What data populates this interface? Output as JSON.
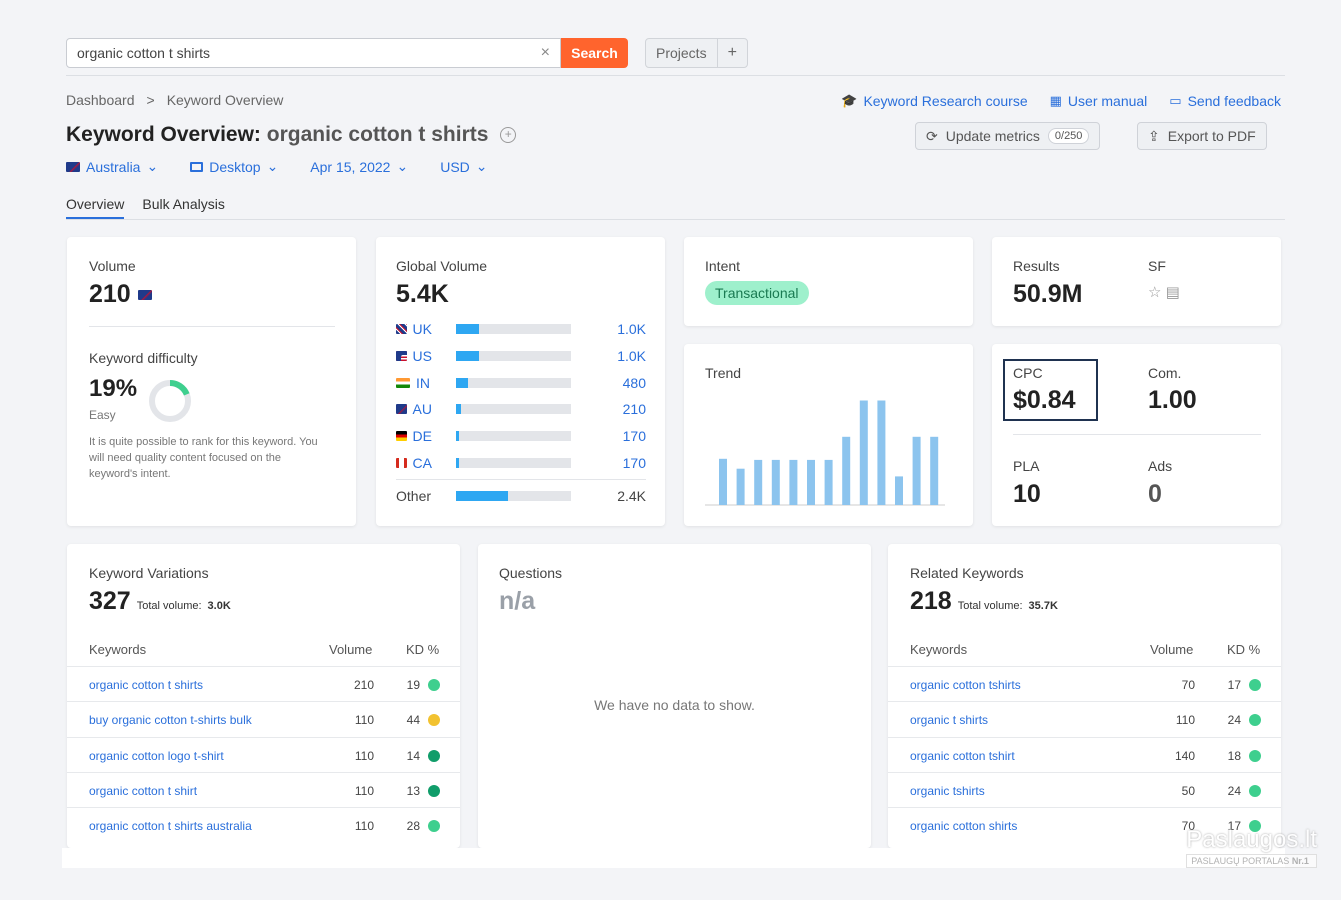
{
  "search": {
    "value": "organic cotton t shirts",
    "button": "Search",
    "clear": "×"
  },
  "projects": {
    "label": "Projects",
    "add": "+"
  },
  "breadcrumb": {
    "home": "Dashboard",
    "sep": ">",
    "current": "Keyword Overview"
  },
  "toplinks": {
    "course": "Keyword Research course",
    "manual": "User manual",
    "feedback": "Send feedback"
  },
  "header": {
    "title": "Keyword Overview:",
    "query": "organic cotton t shirts",
    "update": "Update metrics",
    "update_count": "0/250",
    "export": "Export to PDF"
  },
  "filters": {
    "country": "Australia",
    "device": "Desktop",
    "date": "Apr 15, 2022",
    "currency": "USD"
  },
  "tabs": [
    "Overview",
    "Bulk Analysis"
  ],
  "volume": {
    "label": "Volume",
    "value": "210",
    "kd_label": "Keyword difficulty",
    "kd_value": "19%",
    "kd_level": "Easy",
    "kd_fraction": 0.19,
    "kd_text": "It is quite possible to rank for this keyword. You will need quality content focused on the keyword's intent."
  },
  "global_volume": {
    "label": "Global Volume",
    "value": "5.4K",
    "rows": [
      {
        "code": "UK",
        "flag": "fl-uk",
        "value": "1.0K",
        "fill": 0.2
      },
      {
        "code": "US",
        "flag": "fl-us",
        "value": "1.0K",
        "fill": 0.2
      },
      {
        "code": "IN",
        "flag": "fl-in",
        "value": "480",
        "fill": 0.1
      },
      {
        "code": "AU",
        "flag": "fl-au",
        "value": "210",
        "fill": 0.04
      },
      {
        "code": "DE",
        "flag": "fl-de",
        "value": "170",
        "fill": 0.03
      },
      {
        "code": "CA",
        "flag": "fl-ca",
        "value": "170",
        "fill": 0.03
      }
    ],
    "other_label": "Other",
    "other_value": "2.4K",
    "other_fill": 0.45
  },
  "intent": {
    "label": "Intent",
    "value": "Transactional"
  },
  "results": {
    "label": "Results",
    "value": "50.9M",
    "sf_label": "SF"
  },
  "trend": {
    "label": "Trend",
    "values": [
      0.42,
      0.33,
      0.41,
      0.41,
      0.41,
      0.41,
      0.41,
      0.62,
      0.95,
      0.95,
      0.26,
      0.62,
      0.62
    ]
  },
  "cpc": {
    "cpc_label": "CPC",
    "cpc_value": "$0.84",
    "com_label": "Com.",
    "com_value": "1.00",
    "pla_label": "PLA",
    "pla_value": "10",
    "ads_label": "Ads",
    "ads_value": "0"
  },
  "variations": {
    "label": "Keyword Variations",
    "count": "327",
    "total_label": "Total volume:",
    "total_value": "3.0K",
    "headers": {
      "kw": "Keywords",
      "vol": "Volume",
      "kd": "KD %"
    },
    "rows": [
      {
        "kw": "organic cotton t shirts",
        "vol": "210",
        "kd": "19",
        "color": "#3ecf8e"
      },
      {
        "kw": "buy organic cotton t-shirts bulk",
        "vol": "110",
        "kd": "44",
        "color": "#f2c230"
      },
      {
        "kw": "organic cotton logo t-shirt",
        "vol": "110",
        "kd": "14",
        "color": "#109d6a"
      },
      {
        "kw": "organic cotton t shirt",
        "vol": "110",
        "kd": "13",
        "color": "#109d6a"
      },
      {
        "kw": "organic cotton t shirts australia",
        "vol": "110",
        "kd": "28",
        "color": "#3ecf8e"
      }
    ]
  },
  "questions": {
    "label": "Questions",
    "value": "n/a",
    "empty": "We have no data to show."
  },
  "related": {
    "label": "Related Keywords",
    "count": "218",
    "total_label": "Total volume:",
    "total_value": "35.7K",
    "headers": {
      "kw": "Keywords",
      "vol": "Volume",
      "kd": "KD %"
    },
    "rows": [
      {
        "kw": "organic cotton tshirts",
        "vol": "70",
        "kd": "17",
        "color": "#3ecf8e"
      },
      {
        "kw": "organic t shirts",
        "vol": "110",
        "kd": "24",
        "color": "#3ecf8e"
      },
      {
        "kw": "organic cotton tshirt",
        "vol": "140",
        "kd": "18",
        "color": "#3ecf8e"
      },
      {
        "kw": "organic tshirts",
        "vol": "50",
        "kd": "24",
        "color": "#3ecf8e"
      },
      {
        "kw": "organic cotton shirts",
        "vol": "70",
        "kd": "17",
        "color": "#3ecf8e"
      }
    ]
  },
  "watermark": {
    "brand": "Paslaugos.lt",
    "tag": "PASLAUGŲ PORTALAS",
    "badge": "Nr.1"
  }
}
